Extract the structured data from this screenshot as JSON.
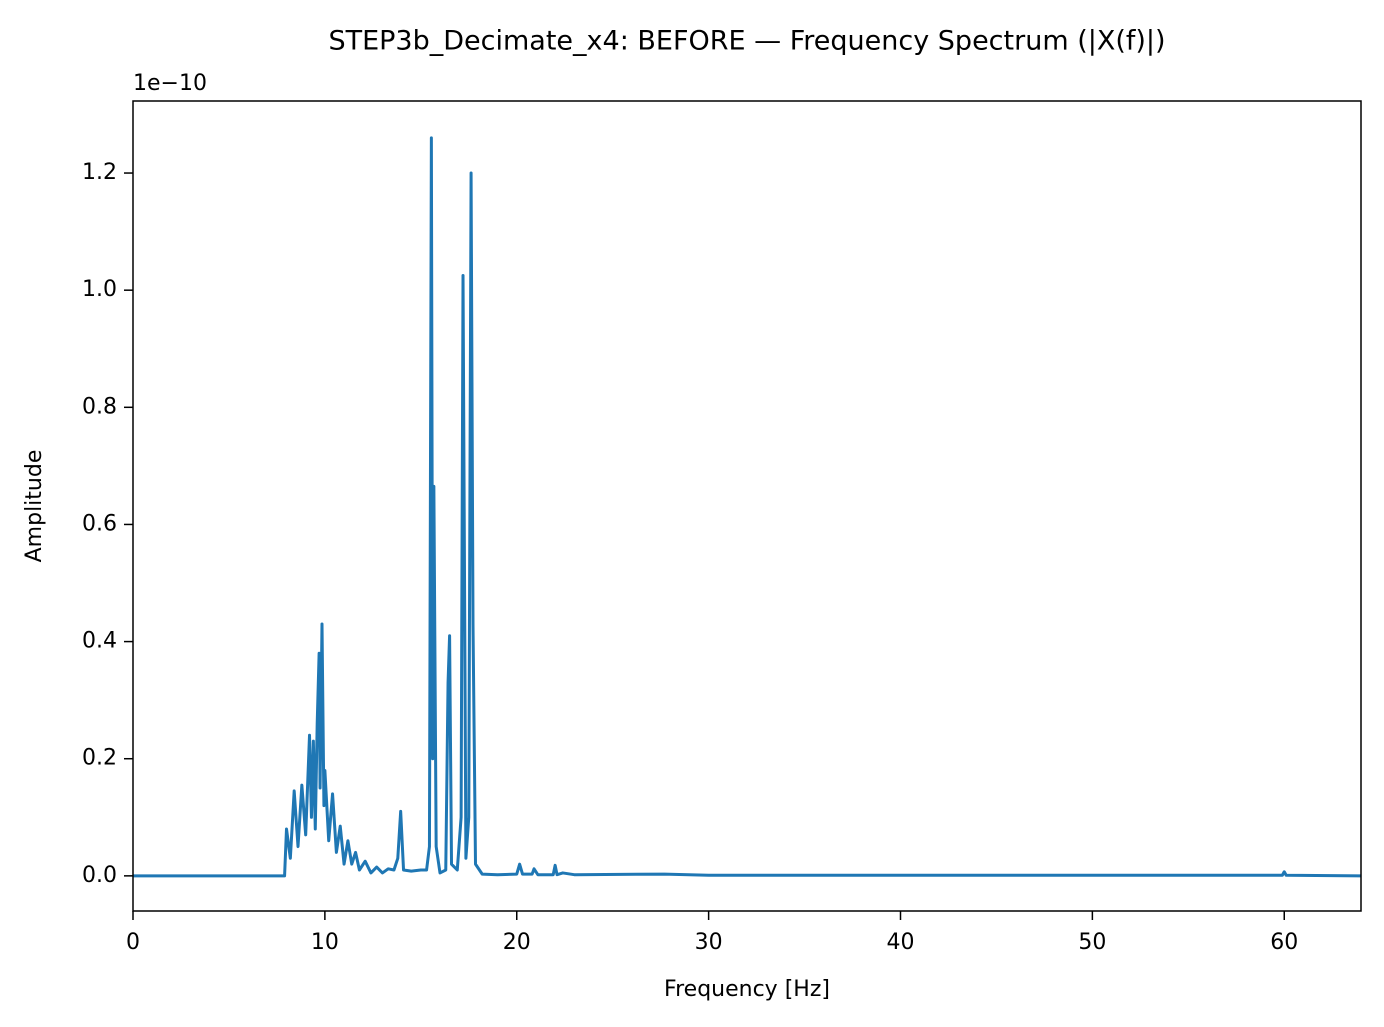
{
  "chart_data": {
    "type": "line",
    "title": "STEP3b_Decimate_x4: BEFORE — Frequency Spectrum (|X(f)|)",
    "x_label": "Frequency [Hz]",
    "y_label": "Amplitude",
    "y_offset_label": "1e−10",
    "color": "#1f77b4",
    "x": [
      0,
      7.9,
      8.0,
      8.2,
      8.4,
      8.6,
      8.8,
      9.0,
      9.2,
      9.3,
      9.4,
      9.5,
      9.6,
      9.7,
      9.75,
      9.85,
      9.95,
      10.0,
      10.2,
      10.4,
      10.6,
      10.8,
      11.0,
      11.2,
      11.4,
      11.6,
      11.8,
      12.1,
      12.4,
      12.7,
      13.0,
      13.3,
      13.6,
      13.8,
      13.95,
      14.1,
      14.5,
      15.0,
      15.3,
      15.45,
      15.55,
      15.62,
      15.68,
      15.8,
      16.0,
      16.3,
      16.42,
      16.5,
      16.6,
      16.9,
      17.1,
      17.2,
      17.35,
      17.5,
      17.62,
      17.72,
      17.85,
      18.2,
      19,
      20.0,
      20.15,
      20.3,
      20.8,
      20.9,
      21.1,
      21.9,
      22.0,
      22.1,
      22.4,
      23,
      27.7,
      30,
      59.9,
      60.0,
      60.1,
      64
    ],
    "values": [
      0,
      0,
      0.08,
      0.03,
      0.145,
      0.05,
      0.155,
      0.07,
      0.24,
      0.1,
      0.23,
      0.08,
      0.26,
      0.38,
      0.15,
      0.43,
      0.12,
      0.18,
      0.06,
      0.14,
      0.04,
      0.085,
      0.02,
      0.06,
      0.02,
      0.04,
      0.01,
      0.025,
      0.005,
      0.015,
      0.005,
      0.012,
      0.01,
      0.03,
      0.11,
      0.01,
      0.008,
      0.01,
      0.01,
      0.05,
      1.26,
      0.2,
      0.665,
      0.05,
      0.005,
      0.01,
      0.33,
      0.41,
      0.02,
      0.01,
      0.1,
      1.025,
      0.03,
      0.1,
      1.2,
      0.43,
      0.02,
      0.003,
      0.002,
      0.003,
      0.02,
      0.003,
      0.003,
      0.012,
      0.002,
      0.002,
      0.018,
      0.002,
      0.005,
      0.002,
      0.003,
      0.001,
      0.001,
      0.007,
      0.001,
      0
    ],
    "xlim": [
      0,
      64
    ],
    "xticks": [
      0,
      10,
      20,
      30,
      40,
      50,
      60
    ],
    "ylim": [
      -0.06,
      1.323
    ],
    "yticks": [
      {
        "value": 0,
        "label": "0.0"
      },
      0.2,
      0.4,
      0.6,
      0.8,
      {
        "value": 1,
        "label": "1.0"
      },
      1.2
    ]
  }
}
